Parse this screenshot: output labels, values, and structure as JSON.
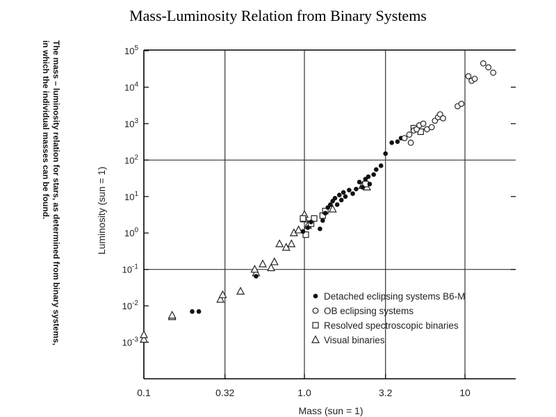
{
  "figure": {
    "title": "Mass-Luminosity Relation from Binary Systems",
    "caption": "The mass – luminosity relation for stars, as determined from binary systems, in which the individual masses can be found."
  },
  "chart_data": {
    "type": "scatter",
    "title": "Mass-Luminosity Relation from Binary Systems",
    "xlabel": "Mass (sun = 1)",
    "ylabel": "Luminosity (sun = 1)",
    "x_scale": "log",
    "y_scale": "log",
    "xlim": [
      0.1,
      15
    ],
    "ylim": [
      0.0001,
      100000
    ],
    "x_ticks": [
      {
        "value": 0.1,
        "label": "0.1"
      },
      {
        "value": 0.32,
        "label": "0.32"
      },
      {
        "value": 1.0,
        "label": "1.0"
      },
      {
        "value": 3.2,
        "label": "3.2"
      },
      {
        "value": 10,
        "label": "10"
      }
    ],
    "y_ticks": [
      {
        "value": 0.001,
        "base": "10",
        "exp": "-3"
      },
      {
        "value": 0.01,
        "base": "10",
        "exp": "-2"
      },
      {
        "value": 0.1,
        "base": "10",
        "exp": "-1"
      },
      {
        "value": 1,
        "base": "10",
        "exp": "0"
      },
      {
        "value": 10,
        "base": "10",
        "exp": "1"
      },
      {
        "value": 100,
        "base": "10",
        "exp": "2"
      },
      {
        "value": 1000,
        "base": "10",
        "exp": "3"
      },
      {
        "value": 10000,
        "base": "10",
        "exp": "4"
      },
      {
        "value": 100000,
        "base": "10",
        "exp": "5"
      }
    ],
    "grid": true,
    "legend_position": "bottom-right",
    "series": [
      {
        "name": "Detached eclipsing systems B6-M",
        "marker": "filled-circle",
        "points": [
          [
            0.2,
            0.007
          ],
          [
            0.22,
            0.007
          ],
          [
            0.5,
            0.065
          ],
          [
            0.98,
            1.1
          ],
          [
            1.05,
            1.4
          ],
          [
            1.1,
            2.0
          ],
          [
            1.25,
            1.3
          ],
          [
            1.3,
            2.2
          ],
          [
            1.35,
            3.5
          ],
          [
            1.4,
            5
          ],
          [
            1.45,
            6
          ],
          [
            1.5,
            7.5
          ],
          [
            1.55,
            9
          ],
          [
            1.6,
            6
          ],
          [
            1.65,
            11
          ],
          [
            1.7,
            8
          ],
          [
            1.75,
            13
          ],
          [
            1.8,
            10
          ],
          [
            1.9,
            15
          ],
          [
            2.0,
            12
          ],
          [
            2.1,
            16
          ],
          [
            2.2,
            25
          ],
          [
            2.3,
            18
          ],
          [
            2.4,
            30
          ],
          [
            2.5,
            35
          ],
          [
            2.55,
            22
          ],
          [
            2.7,
            40
          ],
          [
            2.8,
            55
          ],
          [
            3.0,
            70
          ],
          [
            3.2,
            150
          ],
          [
            3.5,
            300
          ],
          [
            3.8,
            320
          ],
          [
            4.0,
            400
          ]
        ]
      },
      {
        "name": "OB eclipsing systems",
        "marker": "open-circle",
        "points": [
          [
            4.2,
            400
          ],
          [
            4.5,
            500
          ],
          [
            4.6,
            300
          ],
          [
            4.8,
            650
          ],
          [
            5.0,
            700
          ],
          [
            5.2,
            900
          ],
          [
            5.5,
            1000
          ],
          [
            5.8,
            700
          ],
          [
            6.2,
            800
          ],
          [
            6.5,
            1200
          ],
          [
            6.8,
            1500
          ],
          [
            7.0,
            1800
          ],
          [
            7.3,
            1400
          ],
          [
            9.0,
            3000
          ],
          [
            9.5,
            3500
          ],
          [
            10.5,
            20000
          ],
          [
            11,
            15000
          ],
          [
            11.5,
            17000
          ],
          [
            13,
            45000
          ],
          [
            14,
            35000
          ],
          [
            15,
            25000
          ]
        ]
      },
      {
        "name": "Resolved spectroscopic binaries",
        "marker": "open-square",
        "points": [
          [
            0.98,
            2.5
          ],
          [
            1.02,
            0.9
          ],
          [
            1.1,
            1.8
          ],
          [
            1.15,
            2.5
          ],
          [
            1.3,
            3.0
          ],
          [
            1.35,
            4.0
          ],
          [
            2.4,
            22
          ],
          [
            4.8,
            750
          ],
          [
            5.3,
            600
          ]
        ]
      },
      {
        "name": "Visual binaries",
        "marker": "open-triangle",
        "points": [
          [
            0.1,
            0.0012
          ],
          [
            0.1,
            0.0016
          ],
          [
            0.15,
            0.005
          ],
          [
            0.15,
            0.0055
          ],
          [
            0.3,
            0.015
          ],
          [
            0.31,
            0.02
          ],
          [
            0.4,
            0.025
          ],
          [
            0.5,
            0.08
          ],
          [
            0.49,
            0.1
          ],
          [
            0.55,
            0.14
          ],
          [
            0.62,
            0.11
          ],
          [
            0.65,
            0.16
          ],
          [
            0.7,
            0.5
          ],
          [
            0.77,
            0.4
          ],
          [
            0.83,
            0.5
          ],
          [
            0.86,
            1.0
          ],
          [
            0.92,
            1.2
          ],
          [
            1.0,
            2.4
          ],
          [
            1.0,
            3.2
          ],
          [
            1.05,
            1.6
          ],
          [
            1.5,
            4.5
          ],
          [
            2.3,
            20
          ],
          [
            2.45,
            18
          ]
        ]
      }
    ]
  }
}
